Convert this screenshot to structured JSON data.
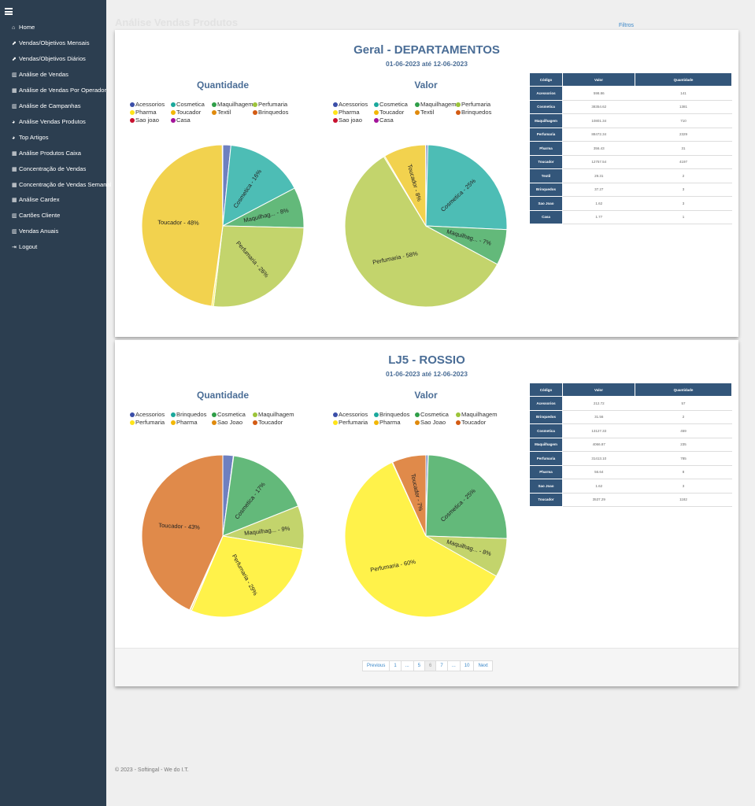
{
  "page_title": "Análise Vendas Produtos",
  "filters_label": "Filtros",
  "footer": "© 2023 - Softingal - We do I.T.",
  "sidebar": {
    "items": [
      {
        "label": "Home",
        "icon": "home-icon",
        "glyph": "⌂"
      },
      {
        "label": "Vendas/Objetivos Mensais",
        "icon": "line-chart-icon",
        "glyph": "⬈"
      },
      {
        "label": "Vendas/Objetivos Diários",
        "icon": "line-chart-icon",
        "glyph": "⬈"
      },
      {
        "label": "Análise de Vendas",
        "icon": "bar-chart-icon",
        "glyph": "▥"
      },
      {
        "label": "Análise de Vendas Por Operador",
        "icon": "table-icon",
        "glyph": "▦"
      },
      {
        "label": "Análise de Campanhas",
        "icon": "bar-chart-icon",
        "glyph": "▥"
      },
      {
        "label": "Análise Vendas Produtos",
        "icon": "pie-chart-icon",
        "glyph": "◕"
      },
      {
        "label": "Top Artigos",
        "icon": "pie-chart-icon",
        "glyph": "◕"
      },
      {
        "label": "Análise Produtos Caixa",
        "icon": "table-icon",
        "glyph": "▦"
      },
      {
        "label": "Concentração de Vendas",
        "icon": "table-icon",
        "glyph": "▦"
      },
      {
        "label": "Concentração de Vendas Semanal",
        "icon": "table-icon",
        "glyph": "▦"
      },
      {
        "label": "Análise Cardex",
        "icon": "table-icon",
        "glyph": "▦"
      },
      {
        "label": "Cartões Cliente",
        "icon": "bar-chart-icon",
        "glyph": "▥"
      },
      {
        "label": "Vendas Anuais",
        "icon": "bar-chart-icon",
        "glyph": "▥"
      },
      {
        "label": "Logout",
        "icon": "logout-icon",
        "glyph": "⇥"
      }
    ]
  },
  "table_headers": [
    "Código",
    "Valor",
    "Quantidade"
  ],
  "chart_titles": [
    "Quantidade",
    "Valor"
  ],
  "pagination": {
    "items": [
      "Previous",
      "1",
      "...",
      "5",
      "6",
      "7",
      "...",
      "10",
      "Next"
    ],
    "active": "6"
  },
  "chart_data": [
    {
      "type": "pie",
      "store": "Geral - DEPARTAMENTOS",
      "period": "01-06-2023 até 12-06-2023",
      "categories": [
        "Acessorios",
        "Cosmetica",
        "Maquilhagem",
        "Perfumaria",
        "Pharma",
        "Toucador",
        "Textil",
        "Brinquedos",
        "Sao joao",
        "Casa"
      ],
      "table_names": [
        "Acessorios",
        "Cosmetica",
        "Maquilhagem",
        "Perfumaria",
        "Pharma",
        "Toucador",
        "Textil",
        "Brinquedos",
        "Sao Joao",
        "Casa"
      ],
      "legend_colors": [
        "#3a4ea8",
        "#1aa89c",
        "#2f9e48",
        "#9cc43a",
        "#ffe419",
        "#f2b705",
        "#e08a0c",
        "#d35b13",
        "#c8102e",
        "#a3139a"
      ],
      "slice_colors": [
        "#6e80c0",
        "#4dbdb5",
        "#63b97a",
        "#c3d46c",
        "#fff24a",
        "#f2d24e",
        "#e3a24a",
        "#e08a4a",
        "#d84a4a",
        "#b04aa8"
      ],
      "valor": [
        598.86,
        38354.62,
        10801.34,
        88472.34,
        356.43,
        12757.54,
        29.31,
        37.27,
        1.62,
        1.77
      ],
      "valor_labels": [
        "598.86",
        "38354.62",
        "10801.34",
        "88472.34",
        "356.43",
        "12757.54",
        "29.31",
        "37.27",
        "1.62",
        "1.77"
      ],
      "quantidade": [
        141,
        1381,
        710,
        2329,
        31,
        4197,
        2,
        3,
        3,
        1
      ]
    },
    {
      "type": "pie",
      "store": "LJ5 - ROSSIO",
      "period": "01-06-2023 até 12-06-2023",
      "categories": [
        "Acessorios",
        "Brinquedos",
        "Cosmetica",
        "Maquilhagem",
        "Perfumaria",
        "Pharma",
        "Sao Joao",
        "Toucador"
      ],
      "table_names": [
        "Acessorios",
        "Brinquedos",
        "Cosmetica",
        "Maquilhagem",
        "Perfumaria",
        "Pharma",
        "Sao Joao",
        "Toucador"
      ],
      "legend_colors": [
        "#3a4ea8",
        "#1aa89c",
        "#2f9e48",
        "#9cc43a",
        "#ffe419",
        "#f2b705",
        "#e08a0c",
        "#d35b13"
      ],
      "slice_colors": [
        "#6e80c0",
        "#4dbdb5",
        "#63b97a",
        "#c3d46c",
        "#fff24a",
        "#f2d24e",
        "#e3a24a",
        "#e08a4a"
      ],
      "valor": [
        212.72,
        31.56,
        13127.33,
        4066.87,
        31413.1,
        56.64,
        1.62,
        3537.29
      ],
      "valor_labels": [
        "212.72",
        "31.56",
        "13127.33",
        "4066.87",
        "31413.10",
        "56.64",
        "1.62",
        "3537.29"
      ],
      "quantidade": [
        57,
        2,
        459,
        235,
        785,
        8,
        3,
        1182
      ]
    }
  ]
}
